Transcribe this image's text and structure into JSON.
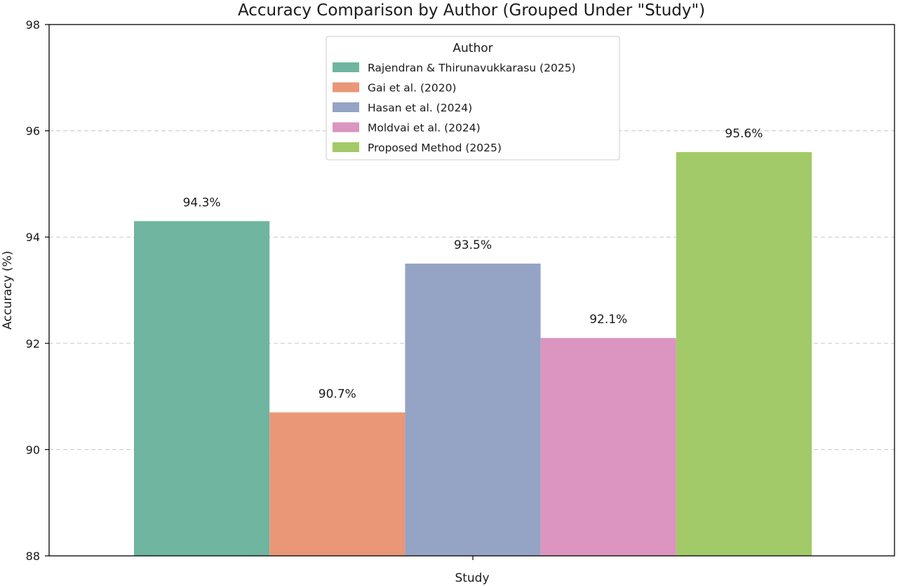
{
  "chart_data": {
    "type": "bar",
    "title": "Accuracy Comparison by Author (Grouped Under \"Study\")",
    "xlabel": "Study",
    "ylabel": "Accuracy (%)",
    "categories": [
      "Study"
    ],
    "ylim": [
      88,
      98
    ],
    "yticks": [
      88,
      90,
      92,
      94,
      96,
      98
    ],
    "grid": "y-dashed",
    "legend": {
      "title": "Author",
      "placement": "top-center"
    },
    "series": [
      {
        "name": "Rajendran & Thirunavukkarasu (2025)",
        "values": [
          94.3
        ],
        "label": "94.3%",
        "color": "#6fb5a0"
      },
      {
        "name": "Gai et al. (2020)",
        "values": [
          90.7
        ],
        "label": "90.7%",
        "color": "#e99777"
      },
      {
        "name": "Hasan et al. (2024)",
        "values": [
          93.5
        ],
        "label": "93.5%",
        "color": "#95a4c4"
      },
      {
        "name": "Moldvai et al. (2024)",
        "values": [
          92.1
        ],
        "label": "92.1%",
        "color": "#db95c0"
      },
      {
        "name": "Proposed Method (2025)",
        "values": [
          95.6
        ],
        "label": "95.6%",
        "color": "#a2ca68"
      }
    ]
  }
}
